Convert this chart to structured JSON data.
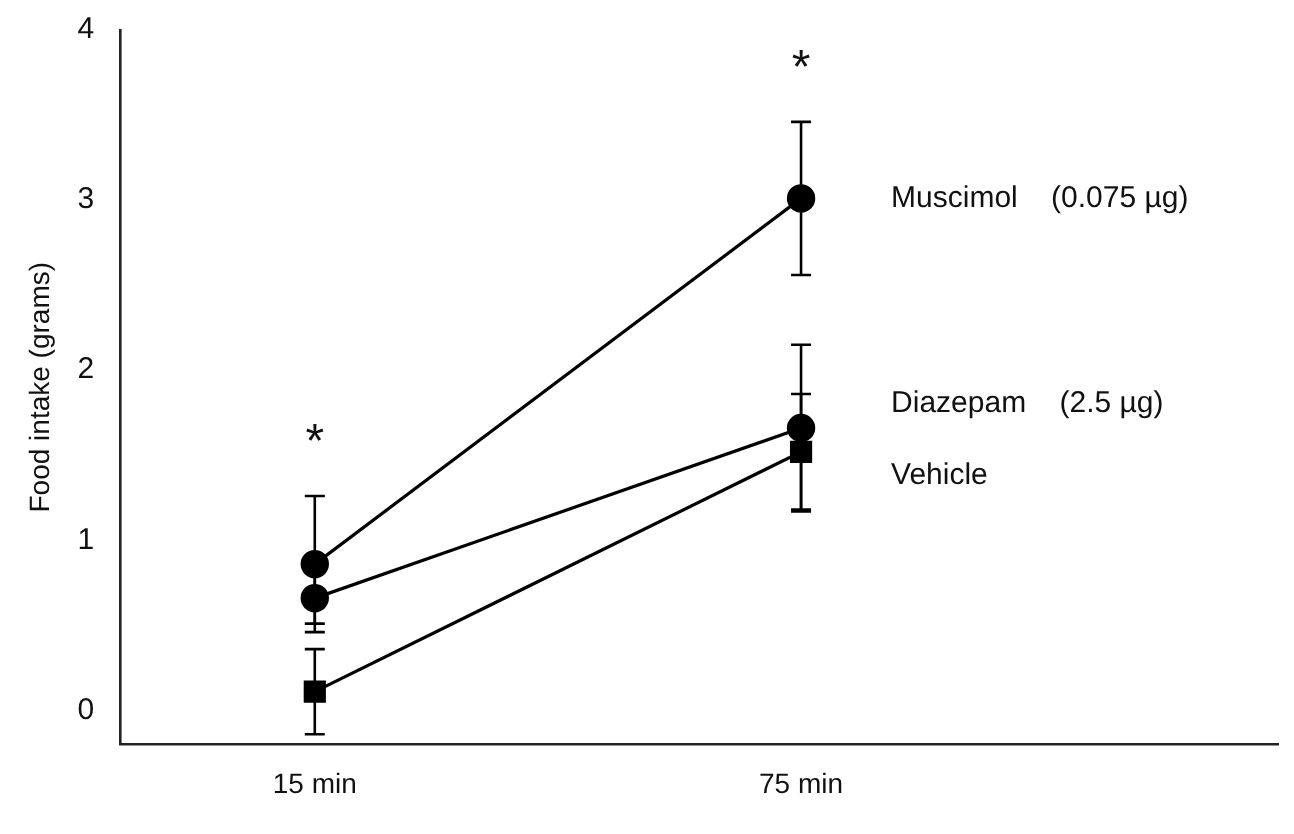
{
  "chart_data": {
    "type": "line",
    "ylabel": "Food intake (grams)",
    "categories": [
      "15 min",
      "75 min"
    ],
    "series": [
      {
        "name": "Muscimol    (0.075 µg)",
        "color": "#000000",
        "marker": "circle",
        "values": [
          0.86,
          3.01
        ],
        "errors": [
          0.4,
          0.45
        ]
      },
      {
        "name": "Diazepam    (2.5 µg)",
        "color": "#000000",
        "marker": "circle",
        "values": [
          0.66,
          1.66
        ],
        "errors": [
          0.15,
          0.49
        ]
      },
      {
        "name": "Vehicle",
        "color": "#000000",
        "marker": "square",
        "values": [
          0.11,
          1.52
        ],
        "errors": [
          0.25,
          0.34
        ]
      }
    ],
    "ylim": [
      -0.2,
      4
    ],
    "yticks": [
      0,
      1,
      2,
      3,
      4
    ],
    "grid": false,
    "legend": false,
    "annotations": [
      "*",
      "*"
    ]
  }
}
